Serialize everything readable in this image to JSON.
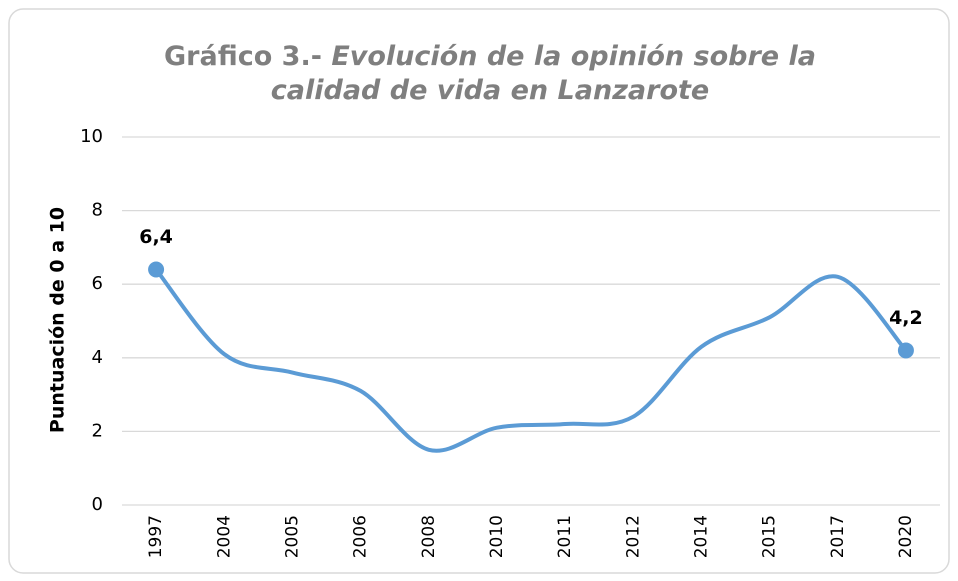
{
  "chart_data": {
    "type": "line",
    "title": "Gráfico 3.-",
    "subtitle": "Evolución de la opinión sobre la calidad de vida en Lanzarote",
    "ylabel": "Puntuación de 0 a 10",
    "categories": [
      "1997",
      "2004",
      "2005",
      "2006",
      "2008",
      "2010",
      "2011",
      "2012",
      "2014",
      "2015",
      "2017",
      "2020"
    ],
    "values": [
      6.4,
      4.1,
      3.6,
      3.1,
      1.5,
      2.1,
      2.2,
      2.4,
      4.3,
      5.1,
      6.2,
      4.2
    ],
    "value_labels": [
      "6,4",
      null,
      null,
      null,
      null,
      null,
      null,
      null,
      null,
      null,
      null,
      "4,2"
    ],
    "color": "#5b9bd5",
    "ylim": [
      0,
      10
    ],
    "yticks": [
      0,
      2,
      4,
      6,
      8,
      10
    ],
    "grid": true,
    "smooth": true
  }
}
